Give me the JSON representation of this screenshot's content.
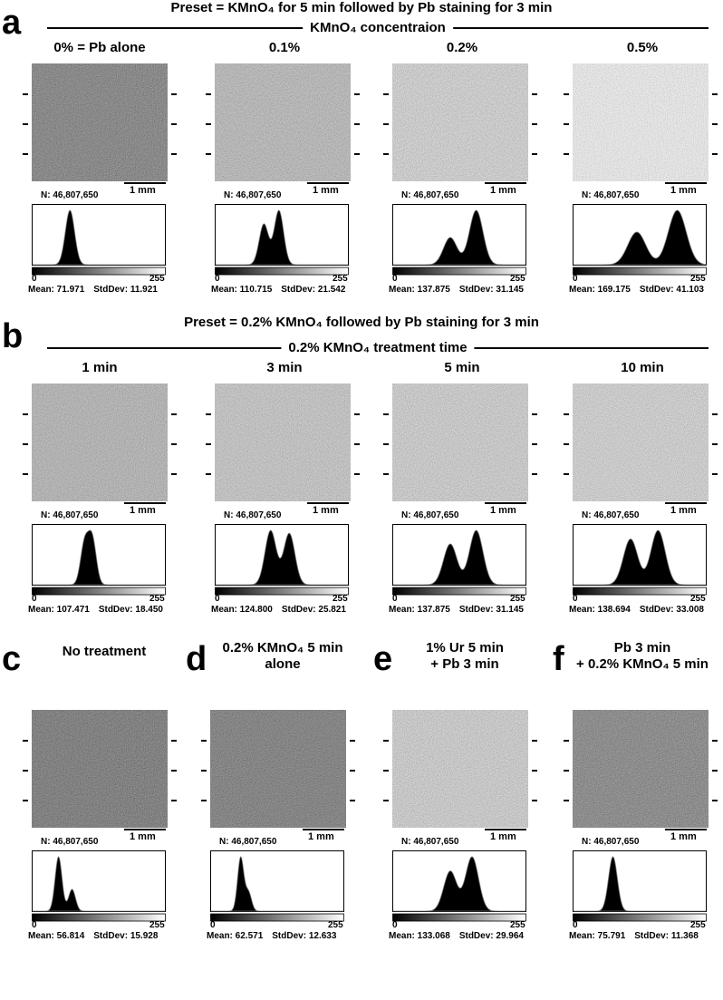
{
  "sections": {
    "a": {
      "label": "a",
      "title": "Preset = KMnO₄ for 5 min followed by Pb staining for 3 min",
      "subtitle": "KMnO₄ concentraion",
      "columns": [
        "0% = Pb alone",
        "0.1%",
        "0.2%",
        "0.5%"
      ]
    },
    "b": {
      "label": "b",
      "title": "Preset = 0.2% KMnO₄ followed by Pb staining for 3 min",
      "subtitle": "0.2% KMnO₄ treatment time",
      "columns": [
        "1 min",
        "3 min",
        "5 min",
        "10 min"
      ]
    },
    "c": {
      "label": "c",
      "title_lines": [
        "No treatment"
      ]
    },
    "d": {
      "label": "d",
      "title_lines": [
        "0.2% KMnO₄ 5 min",
        "alone"
      ]
    },
    "e": {
      "label": "e",
      "title_lines": [
        "1% Ur  5 min",
        "+ Pb 3 min"
      ]
    },
    "f": {
      "label": "f",
      "title_lines": [
        "Pb 3 min",
        "+ 0.2% KMnO₄ 5 min"
      ]
    }
  },
  "common": {
    "n_label": "N: 46,807,650",
    "scale_label": "1 mm",
    "hist_min": "0",
    "hist_max": "255"
  },
  "panels": [
    {
      "id": "a1",
      "mean": 71.971,
      "stddev": 11.921,
      "mean_text": "Mean: 71.971",
      "std_text": "StdDev: 11.921",
      "brightness": 0.16
    },
    {
      "id": "a2",
      "mean": 110.715,
      "stddev": 21.542,
      "mean_text": "Mean: 110.715",
      "std_text": "StdDev: 21.542",
      "brightness": 0.4
    },
    {
      "id": "a3",
      "mean": 137.875,
      "stddev": 31.145,
      "mean_text": "Mean: 137.875",
      "std_text": "StdDev: 31.145",
      "brightness": 0.52
    },
    {
      "id": "a4",
      "mean": 169.175,
      "stddev": 41.103,
      "mean_text": "Mean: 169.175",
      "std_text": "StdDev: 41.103",
      "brightness": 0.68
    },
    {
      "id": "b1",
      "mean": 107.471,
      "stddev": 18.45,
      "mean_text": "Mean: 107.471",
      "std_text": "StdDev: 18.450",
      "brightness": 0.38
    },
    {
      "id": "b2",
      "mean": 124.8,
      "stddev": 25.821,
      "mean_text": "Mean: 124.800",
      "std_text": "StdDev: 25.821",
      "brightness": 0.46
    },
    {
      "id": "b3",
      "mean": 137.875,
      "stddev": 31.145,
      "mean_text": "Mean: 137.875",
      "std_text": "StdDev: 31.145",
      "brightness": 0.5
    },
    {
      "id": "b4",
      "mean": 138.694,
      "stddev": 33.008,
      "mean_text": "Mean: 138.694",
      "std_text": "StdDev: 33.008",
      "brightness": 0.52
    },
    {
      "id": "c",
      "mean": 56.814,
      "stddev": 15.928,
      "mean_text": "Mean: 56.814",
      "std_text": "StdDev: 15.928",
      "brightness": 0.12
    },
    {
      "id": "d",
      "mean": 62.571,
      "stddev": 12.633,
      "mean_text": "Mean: 62.571",
      "std_text": "StdDev: 12.633",
      "brightness": 0.14
    },
    {
      "id": "e",
      "mean": 133.068,
      "stddev": 29.964,
      "mean_text": "Mean: 133.068",
      "std_text": "StdDev: 29.964",
      "brightness": 0.5
    },
    {
      "id": "f",
      "mean": 75.791,
      "stddev": 11.368,
      "mean_text": "Mean: 75.791",
      "std_text": "StdDev: 11.368",
      "brightness": 0.18
    }
  ],
  "chart_data": [
    {
      "type": "area",
      "panel": "a1",
      "x_range": [
        0,
        255
      ],
      "peaks": [
        {
          "x": 72,
          "height": 1.0
        }
      ]
    },
    {
      "type": "area",
      "panel": "a2",
      "x_range": [
        0,
        255
      ],
      "peaks": [
        {
          "x": 93,
          "height": 0.75
        },
        {
          "x": 122,
          "height": 1.0
        }
      ]
    },
    {
      "type": "area",
      "panel": "a3",
      "x_range": [
        0,
        255
      ],
      "peaks": [
        {
          "x": 110,
          "height": 0.5
        },
        {
          "x": 160,
          "height": 1.0
        }
      ]
    },
    {
      "type": "area",
      "panel": "a4",
      "x_range": [
        0,
        255
      ],
      "peaks": [
        {
          "x": 122,
          "height": 0.6
        },
        {
          "x": 200,
          "height": 1.0
        }
      ]
    },
    {
      "type": "area",
      "panel": "b1",
      "x_range": [
        0,
        255
      ],
      "peaks": [
        {
          "x": 100,
          "height": 0.9
        },
        {
          "x": 115,
          "height": 1.0
        }
      ]
    },
    {
      "type": "area",
      "panel": "b2",
      "x_range": [
        0,
        255
      ],
      "peaks": [
        {
          "x": 106,
          "height": 0.95
        },
        {
          "x": 142,
          "height": 0.9
        }
      ]
    },
    {
      "type": "area",
      "panel": "b3",
      "x_range": [
        0,
        255
      ],
      "peaks": [
        {
          "x": 110,
          "height": 0.75
        },
        {
          "x": 160,
          "height": 1.0
        }
      ]
    },
    {
      "type": "area",
      "panel": "b4",
      "x_range": [
        0,
        255
      ],
      "peaks": [
        {
          "x": 110,
          "height": 0.8
        },
        {
          "x": 163,
          "height": 0.95
        }
      ]
    },
    {
      "type": "area",
      "panel": "c",
      "x_range": [
        0,
        255
      ],
      "peaks": [
        {
          "x": 50,
          "height": 1.0
        },
        {
          "x": 76,
          "height": 0.4
        }
      ]
    },
    {
      "type": "area",
      "panel": "d",
      "x_range": [
        0,
        255
      ],
      "peaks": [
        {
          "x": 57,
          "height": 1.0
        },
        {
          "x": 72,
          "height": 0.35
        }
      ]
    },
    {
      "type": "area",
      "panel": "e",
      "x_range": [
        0,
        255
      ],
      "peaks": [
        {
          "x": 110,
          "height": 0.7
        },
        {
          "x": 152,
          "height": 0.95
        }
      ]
    },
    {
      "type": "area",
      "panel": "f",
      "x_range": [
        0,
        255
      ],
      "peaks": [
        {
          "x": 76,
          "height": 1.0
        }
      ]
    }
  ]
}
